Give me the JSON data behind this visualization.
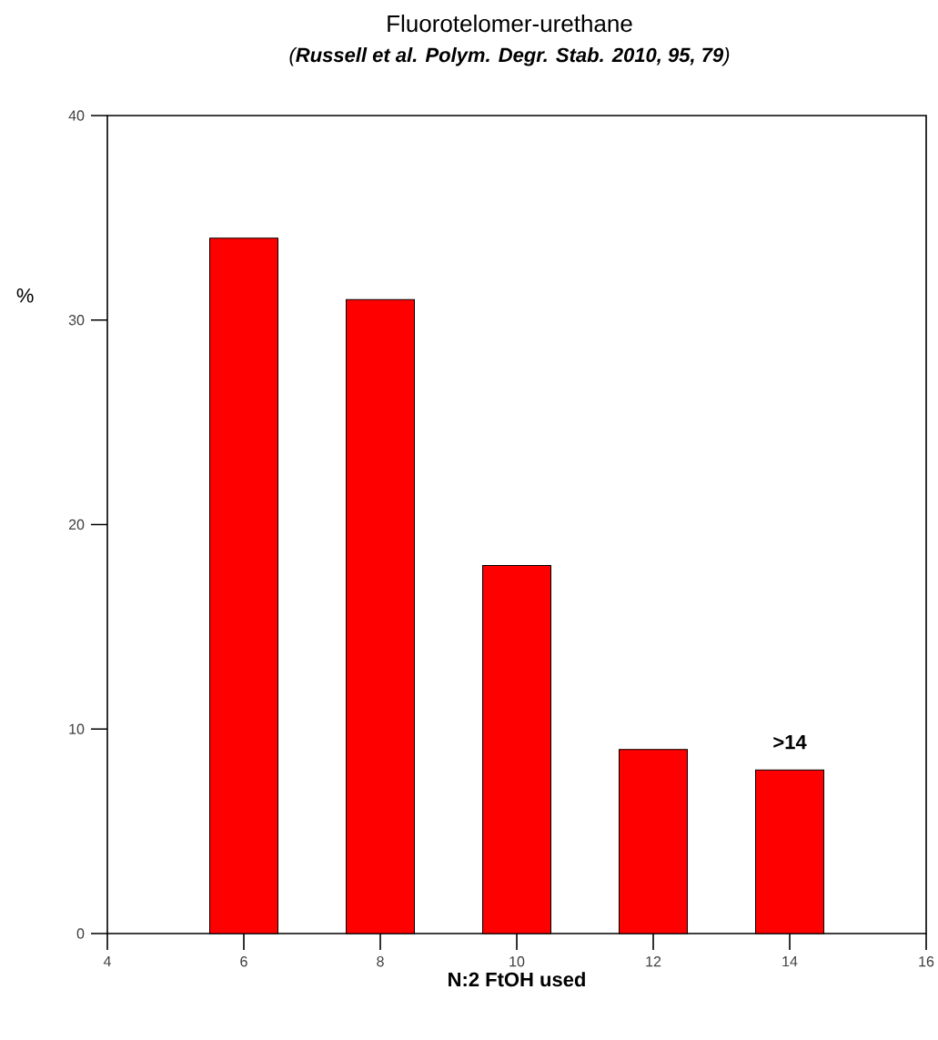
{
  "chart_data": {
    "type": "bar",
    "title": "Fluorotelomer-urethane",
    "subtitle": "(**Russell et al. Polym. Degr. Stab. 2010, 95, 79**)",
    "xlabel": "N:2 FtOH used",
    "ylabel": "%",
    "x": [
      6,
      8,
      10,
      12,
      14
    ],
    "values": [
      34,
      31,
      18,
      9,
      8
    ],
    "color": "#ff0000",
    "xlim": [
      4,
      16
    ],
    "ylim": [
      0,
      40
    ],
    "xticks": [
      4,
      6,
      8,
      10,
      12,
      14,
      16
    ],
    "yticks": [
      0,
      10,
      20,
      30,
      40
    ],
    "annotations": [
      {
        "text": ">14",
        "x": 14,
        "y": 8
      }
    ]
  }
}
